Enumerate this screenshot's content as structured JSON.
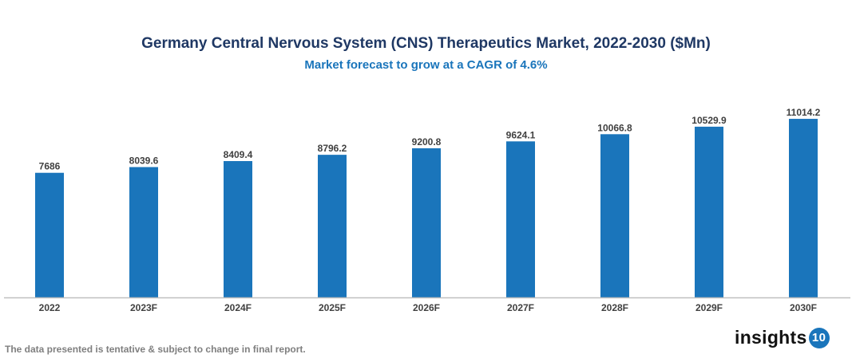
{
  "chart_data": {
    "type": "bar",
    "title": "Germany Central Nervous System (CNS) Therapeutics Market, 2022-2030 ($Mn)",
    "subtitle": "Market forecast to grow at a CAGR of 4.6%",
    "categories": [
      "2022",
      "2023F",
      "2024F",
      "2025F",
      "2026F",
      "2027F",
      "2028F",
      "2029F",
      "2030F"
    ],
    "values": [
      7686,
      8039.6,
      8409.4,
      8796.2,
      9200.8,
      9624.1,
      10066.8,
      10529.9,
      11014.2
    ],
    "data_labels": [
      "7686",
      "8039.6",
      "8409.4",
      "8796.2",
      "9200.8",
      "9624.1",
      "10066.8",
      "10529.9",
      "11014.2"
    ],
    "xlabel": "",
    "ylabel": "",
    "ylim": [
      0,
      12000
    ],
    "grid": false,
    "legend": "none",
    "bar_color": "#1a75bb"
  },
  "footnote": "The data presented is tentative & subject to change in final report.",
  "logo": {
    "text": "insights",
    "badge": "10"
  }
}
